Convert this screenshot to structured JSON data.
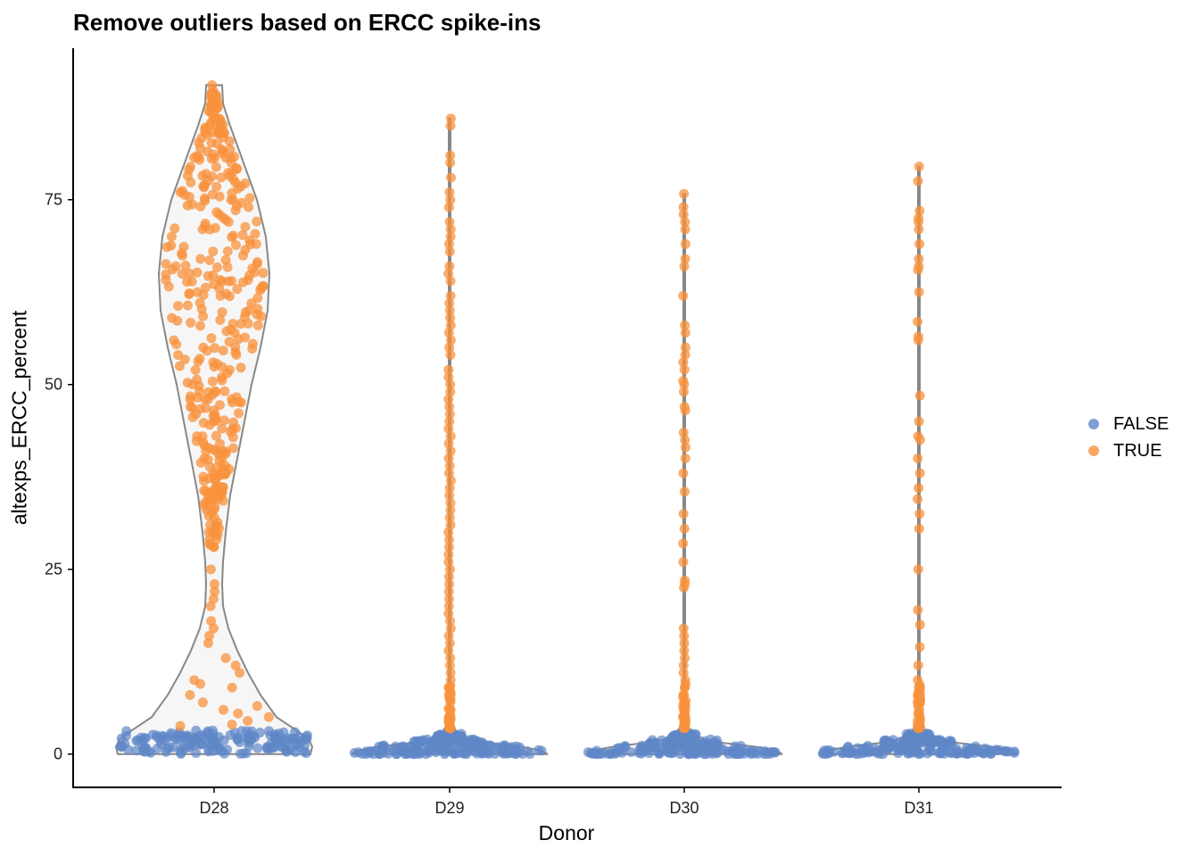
{
  "chart_data": {
    "type": "scatter",
    "subtype": "violin-jitter",
    "title": "Remove outliers based on ERCC spike-ins",
    "xlabel": "Donor",
    "ylabel": "altexps_ERCC_percent",
    "categories": [
      "D28",
      "D29",
      "D30",
      "D31"
    ],
    "ylim": [
      -4.5,
      95.5
    ],
    "yticks": [
      0,
      25,
      50,
      75
    ],
    "grid": false,
    "legend_position": "right",
    "series": [
      {
        "name": "FALSE",
        "color": "#5f87c8",
        "approx_range": [
          0,
          3.5
        ]
      },
      {
        "name": "TRUE",
        "color": "#f8913c",
        "approx_range": [
          3.5,
          90.5
        ]
      }
    ],
    "violin_max": {
      "D28": 90.5,
      "D29": 86,
      "D30": 75.8,
      "D31": 79.5
    },
    "true_outliers": {
      "D28": [
        90.5,
        89,
        88.5,
        87,
        86,
        84,
        82,
        80,
        78,
        76,
        75,
        74,
        73,
        72,
        71,
        70,
        69,
        68,
        67,
        66,
        65,
        64,
        63,
        62,
        61,
        60,
        59,
        58,
        57,
        56,
        55,
        54,
        53,
        52,
        51,
        50,
        49,
        48,
        47,
        46,
        45,
        44,
        43,
        42,
        41,
        40,
        39,
        38,
        37,
        36,
        35,
        34,
        33,
        32,
        31,
        30,
        29,
        28,
        25,
        23,
        22,
        21,
        20,
        18,
        17,
        16,
        15,
        13,
        12,
        11,
        10,
        9.5,
        9,
        8,
        7,
        6.5,
        6,
        5.5,
        5,
        4.5,
        4,
        3.8
      ],
      "D29": [
        86,
        85,
        81,
        80,
        78,
        76,
        75,
        74,
        72,
        71,
        70,
        69,
        68,
        66,
        65,
        64,
        62,
        61,
        60,
        59,
        58,
        57,
        56,
        55,
        54,
        52,
        51,
        50,
        49,
        48,
        47,
        46,
        45,
        44,
        43,
        42,
        41,
        40,
        39,
        38,
        37,
        36,
        35,
        34,
        33,
        32,
        31,
        30,
        29,
        28,
        27,
        26,
        25,
        24,
        23,
        22,
        21,
        20,
        19,
        18,
        17,
        16,
        15,
        14,
        13,
        12,
        11,
        10,
        9,
        8,
        7,
        6,
        5,
        4.5,
        4,
        3.6
      ],
      "D30": [
        75.8,
        74,
        73,
        72,
        71,
        69,
        67,
        66,
        62,
        58,
        57,
        55,
        54,
        53,
        52,
        50.5,
        50,
        49,
        47,
        46.5,
        43.5,
        42.5,
        41.5,
        40,
        38,
        35.5,
        32.5,
        30.5,
        28.5,
        26,
        23.5,
        23,
        22.5,
        17,
        16,
        15,
        14,
        13,
        12,
        11,
        10,
        9.5,
        9,
        8,
        7,
        6,
        5.5,
        5,
        4.5,
        4,
        3.6
      ],
      "D31": [
        79.5,
        77.5,
        73.5,
        72.5,
        72,
        71,
        69,
        67,
        66,
        65.5,
        62.5,
        58.5,
        56.5,
        56,
        48.5,
        45,
        43,
        42.5,
        40,
        38,
        36,
        34.5,
        32.5,
        30.5,
        25,
        19.5,
        17.5,
        14.5,
        12,
        10,
        9,
        8.5,
        8,
        7.5,
        7,
        6.5,
        6,
        5.5,
        5,
        4.5,
        4,
        3.6
      ]
    }
  }
}
